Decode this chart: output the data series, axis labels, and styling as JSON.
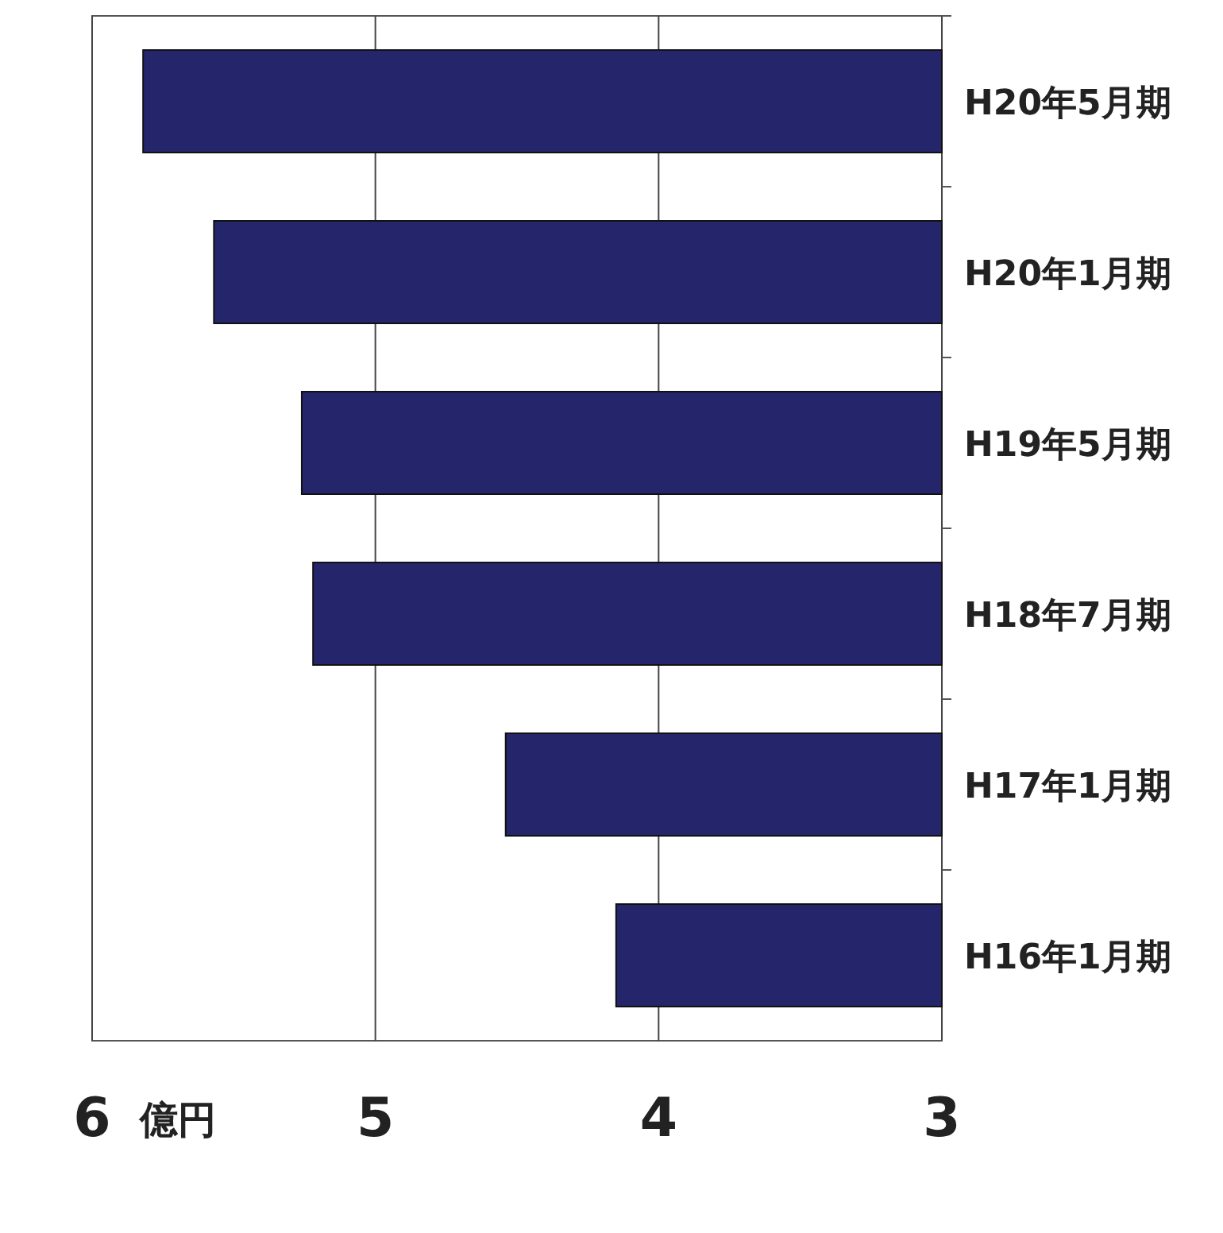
{
  "chart_data": {
    "type": "bar",
    "orientation": "horizontal",
    "xlabel": "億円",
    "categories": [
      "H20年5月期",
      "H20年1月期",
      "H19年5月期",
      "H18年7月期",
      "H17年1月期",
      "H16年1月期"
    ],
    "values": [
      5.82,
      5.57,
      5.26,
      5.22,
      4.54,
      4.15
    ],
    "color": "#25256b",
    "xlim": [
      6,
      3
    ],
    "xticks": [
      6,
      5,
      4,
      3
    ],
    "grid": "x"
  }
}
